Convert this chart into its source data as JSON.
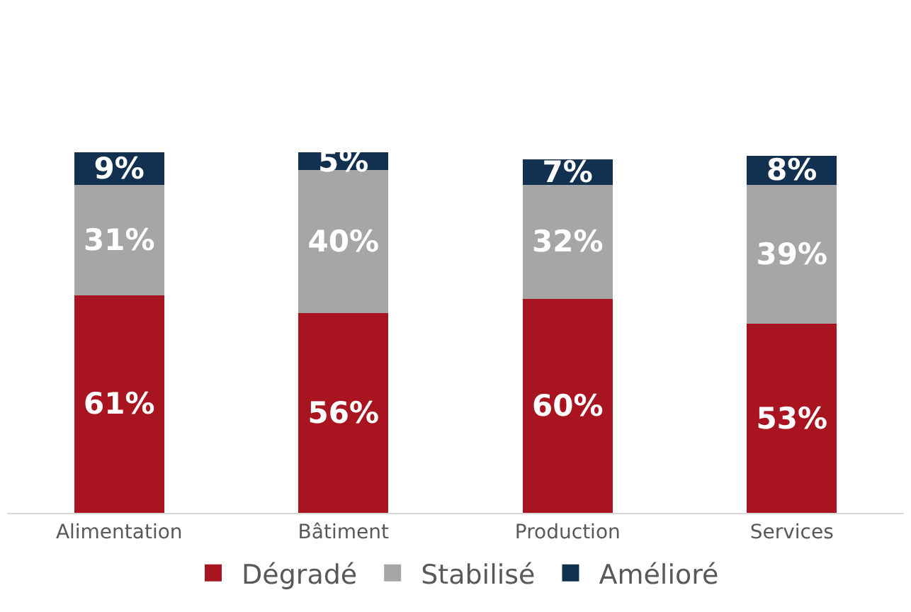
{
  "chart_data": {
    "type": "bar",
    "stacked": true,
    "categories": [
      "Alimentation",
      "Bâtiment",
      "Production",
      "Services"
    ],
    "series": [
      {
        "name": "Dégradé",
        "color": "#a8141f",
        "values": [
          61,
          56,
          60,
          53
        ],
        "value_labels": [
          "61%",
          "56%",
          "60%",
          "53%"
        ]
      },
      {
        "name": "Stabilisé",
        "color": "#a6a6a6",
        "values": [
          31,
          40,
          32,
          39
        ],
        "value_labels": [
          "31%",
          "40%",
          "32%",
          "39%"
        ]
      },
      {
        "name": "Amélioré",
        "color": "#12304f",
        "values": [
          9,
          5,
          7,
          8
        ],
        "value_labels": [
          "9%",
          "5%",
          "7%",
          "8%"
        ]
      }
    ],
    "legend": "bottom",
    "tick_labels": "x"
  }
}
